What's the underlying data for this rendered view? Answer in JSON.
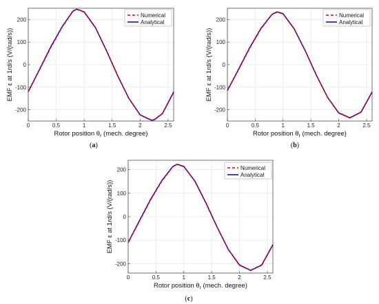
{
  "chart_data": [
    {
      "type": "line",
      "caption": "(a)",
      "xlabel": "Rotor position θr (mech. degree)",
      "ylabel": "EMF ε at 1rd/s (V/(rad/s))",
      "xlim": [
        0,
        2.6
      ],
      "ylim": [
        -250,
        250
      ],
      "xticks": [
        0,
        0.5,
        1,
        1.5,
        2,
        2.5
      ],
      "yticks": [
        -200,
        -100,
        0,
        100,
        200
      ],
      "grid": true,
      "legend": "top-right",
      "series": [
        {
          "name": "Numerical",
          "color": "#e00000",
          "style": "dashed",
          "x": [
            0,
            0.2,
            0.4,
            0.6,
            0.8,
            0.87,
            1.0,
            1.2,
            1.4,
            1.6,
            1.8,
            2.0,
            2.2,
            2.25,
            2.4,
            2.6
          ],
          "y": [
            -120,
            -24,
            75,
            164,
            237,
            245,
            233,
            164,
            61,
            -50,
            -150,
            -222,
            -245,
            -244,
            -216,
            -120
          ]
        },
        {
          "name": "Analytical",
          "color": "#0000cc",
          "style": "solid",
          "x": [
            0,
            0.2,
            0.4,
            0.6,
            0.8,
            0.87,
            1.0,
            1.2,
            1.4,
            1.6,
            1.8,
            2.0,
            2.2,
            2.25,
            2.4,
            2.6
          ],
          "y": [
            -120,
            -22,
            78,
            166,
            238,
            246,
            234,
            165,
            62,
            -49,
            -150,
            -223,
            -246,
            -245,
            -217,
            -122
          ]
        }
      ]
    },
    {
      "type": "line",
      "caption": "(b)",
      "xlabel": "Rotor position θr (mech. degree)",
      "ylabel": "EMF ε at 1rd/s (V/(rad/s))",
      "xlim": [
        0,
        2.6
      ],
      "ylim": [
        -250,
        250
      ],
      "xticks": [
        0,
        0.5,
        1,
        1.5,
        2,
        2.5
      ],
      "yticks": [
        -200,
        -100,
        0,
        100,
        200
      ],
      "grid": true,
      "legend": "top-right",
      "series": [
        {
          "name": "Numerical",
          "color": "#e00000",
          "style": "dashed",
          "x": [
            0,
            0.2,
            0.4,
            0.6,
            0.8,
            0.89,
            1.0,
            1.2,
            1.4,
            1.6,
            1.8,
            2.0,
            2.2,
            2.4,
            2.6
          ],
          "y": [
            -115,
            -22,
            73,
            158,
            222,
            233,
            225,
            158,
            60,
            -48,
            -145,
            -213,
            -235,
            -210,
            -120
          ]
        },
        {
          "name": "Analytical",
          "color": "#0000cc",
          "style": "solid",
          "x": [
            0,
            0.2,
            0.4,
            0.6,
            0.8,
            0.89,
            1.0,
            1.2,
            1.4,
            1.6,
            1.8,
            2.0,
            2.2,
            2.4,
            2.6
          ],
          "y": [
            -115,
            -20,
            75,
            160,
            223,
            234,
            226,
            159,
            61,
            -47,
            -145,
            -214,
            -236,
            -211,
            -122
          ]
        }
      ]
    },
    {
      "type": "line",
      "caption": "(c)",
      "xlabel": "Rotor position θr (mech. degree)",
      "ylabel": "EMF ε at 1rd/s (V/(rad/s))",
      "xlim": [
        0,
        2.6
      ],
      "ylim": [
        -240,
        240
      ],
      "xticks": [
        0,
        0.5,
        1,
        1.5,
        2,
        2.5
      ],
      "yticks": [
        -200,
        -100,
        0,
        100,
        200
      ],
      "grid": true,
      "legend": "top-right",
      "series": [
        {
          "name": "Numerical",
          "color": "#e00000",
          "style": "dashed",
          "x": [
            0,
            0.2,
            0.4,
            0.6,
            0.8,
            0.88,
            1.0,
            1.2,
            1.4,
            1.6,
            1.8,
            2.0,
            2.2,
            2.4,
            2.6
          ],
          "y": [
            -110,
            -20,
            70,
            150,
            212,
            222,
            213,
            150,
            56,
            -46,
            -140,
            -205,
            -228,
            -205,
            -118
          ]
        },
        {
          "name": "Analytical",
          "color": "#0000cc",
          "style": "solid",
          "x": [
            0,
            0.2,
            0.4,
            0.6,
            0.8,
            0.88,
            1.0,
            1.2,
            1.4,
            1.6,
            1.8,
            2.0,
            2.2,
            2.4,
            2.6
          ],
          "y": [
            -110,
            -18,
            72,
            152,
            213,
            223,
            214,
            151,
            57,
            -45,
            -140,
            -206,
            -229,
            -206,
            -120
          ]
        }
      ]
    }
  ]
}
